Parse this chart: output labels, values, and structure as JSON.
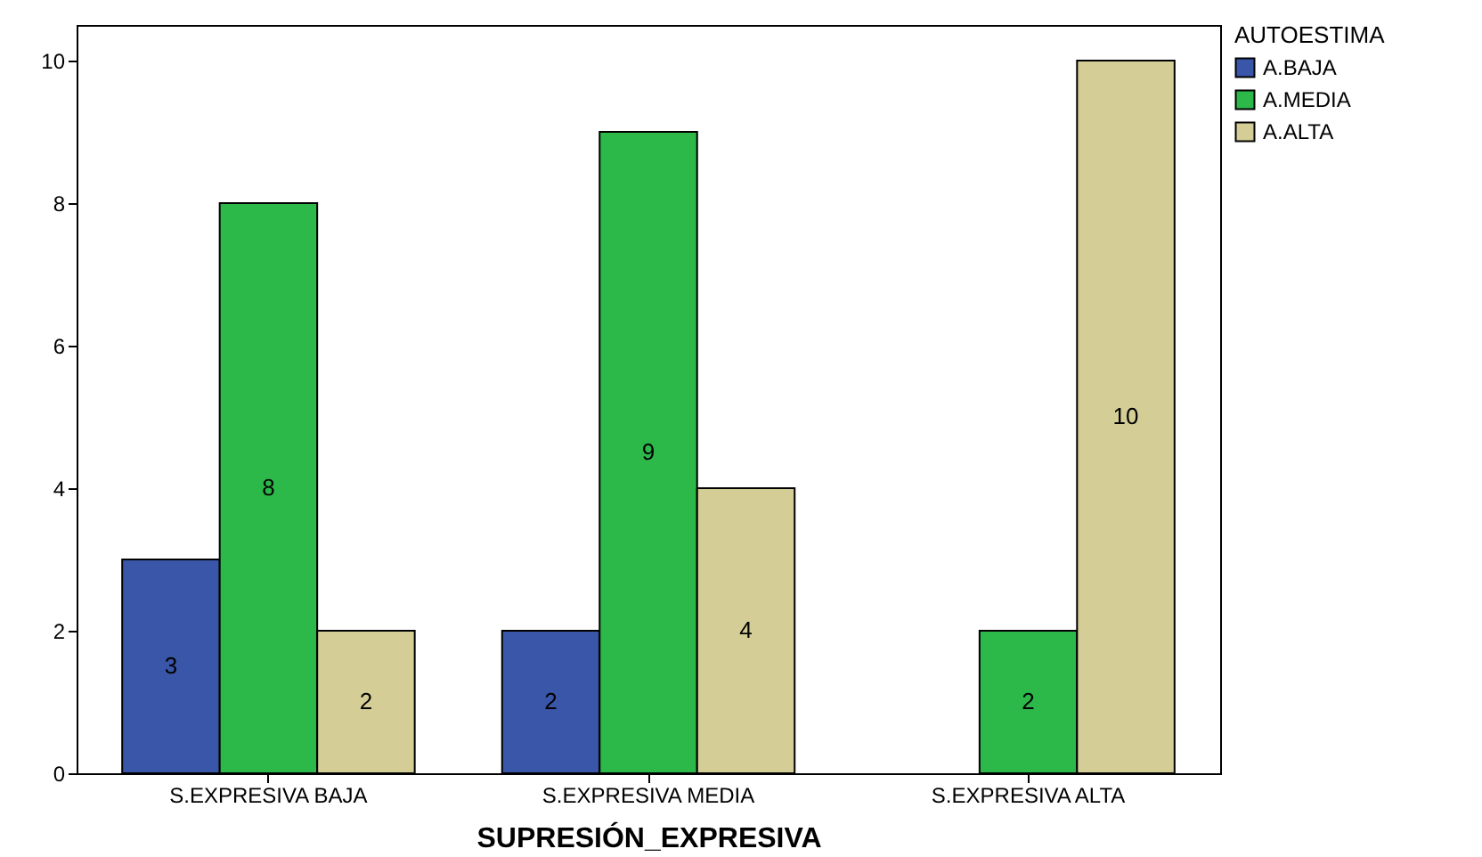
{
  "chart_data": {
    "type": "bar",
    "xlabel": "SUPRESIÓN_EXPRESIVA",
    "legend_title": "AUTOESTIMA",
    "categories": [
      "S.EXPRESIVA BAJA",
      "S.EXPRESIVA MEDIA",
      "S.EXPRESIVA ALTA"
    ],
    "series": [
      {
        "name": "A.BAJA",
        "color": "#3a56a8",
        "values": [
          3,
          2,
          null
        ]
      },
      {
        "name": "A.MEDIA",
        "color": "#2db84a",
        "values": [
          8,
          9,
          2
        ]
      },
      {
        "name": "A.ALTA",
        "color": "#d5cd96",
        "values": [
          2,
          4,
          10
        ]
      }
    ],
    "ylim": [
      0,
      10.5
    ],
    "yticks": [
      0,
      2,
      4,
      6,
      8,
      10
    ],
    "grid": false,
    "legend": "top right",
    "data_labels": true
  }
}
